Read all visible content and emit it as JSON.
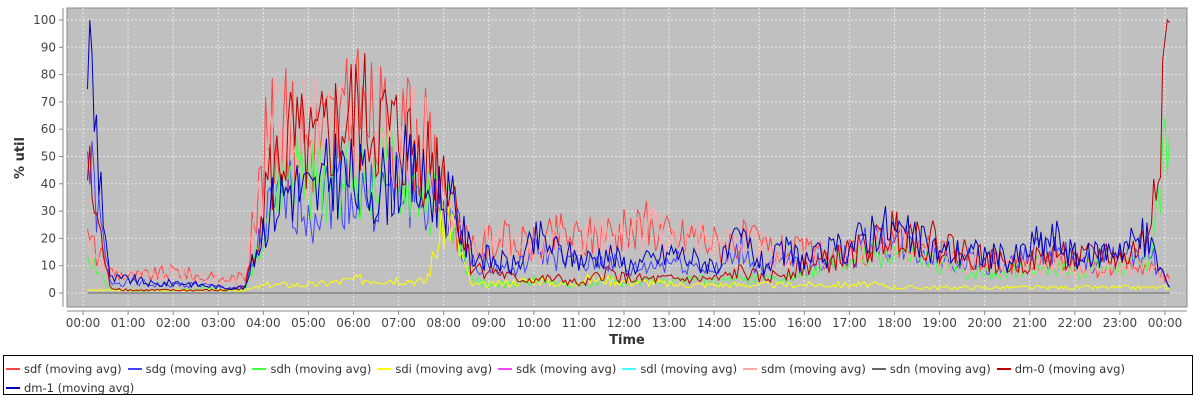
{
  "chart_data": {
    "type": "line",
    "title": "",
    "xlabel": "Time",
    "ylabel": "% util",
    "ylim": [
      -3,
      103
    ],
    "xlim_hours": [
      -0.35,
      24.5
    ],
    "grid": true,
    "legend_placement": "bottom",
    "yticks": [
      "0",
      "10",
      "20",
      "30",
      "40",
      "50",
      "60",
      "70",
      "80",
      "90",
      "100"
    ],
    "xticks": [
      "00:00",
      "01:00",
      "02:00",
      "03:00",
      "04:00",
      "05:00",
      "06:00",
      "07:00",
      "08:00",
      "09:00",
      "10:00",
      "11:00",
      "12:00",
      "13:00",
      "14:00",
      "15:00",
      "16:00",
      "17:00",
      "18:00",
      "19:00",
      "20:00",
      "21:00",
      "22:00",
      "23:00",
      "00:00"
    ],
    "x_hours_step": 0.5,
    "x_hours_start": 0.1,
    "series": [
      {
        "name": "sdf (moving avg)",
        "color": "#ff4444",
        "values": [
          20,
          8,
          6,
          7,
          8,
          6,
          5,
          6,
          58,
          60,
          58,
          62,
          65,
          62,
          58,
          55,
          30,
          15,
          20,
          18,
          18,
          22,
          20,
          23,
          22,
          25,
          20,
          22,
          18,
          20,
          17,
          15,
          15,
          12,
          15,
          18,
          20,
          16,
          14,
          12,
          12,
          11,
          10,
          12,
          10,
          8,
          12,
          10,
          5
        ]
      },
      {
        "name": "sdg (moving avg)",
        "color": "#4444ff",
        "values": [
          50,
          4,
          4,
          3,
          3,
          3,
          2,
          2,
          28,
          35,
          30,
          40,
          35,
          35,
          40,
          33,
          30,
          12,
          10,
          8,
          16,
          12,
          10,
          12,
          8,
          10,
          12,
          10,
          8,
          16,
          8,
          12,
          10,
          12,
          15,
          20,
          18,
          15,
          12,
          12,
          11,
          10,
          15,
          16,
          10,
          12,
          15,
          16,
          2
        ]
      },
      {
        "name": "sdh (moving avg)",
        "color": "#44ff44",
        "values": [
          15,
          1,
          1,
          1,
          1,
          2,
          1,
          1,
          30,
          45,
          40,
          45,
          40,
          45,
          40,
          35,
          30,
          5,
          3,
          3,
          5,
          3,
          3,
          5,
          3,
          5,
          5,
          5,
          4,
          5,
          5,
          5,
          8,
          10,
          12,
          15,
          15,
          12,
          10,
          8,
          8,
          8,
          10,
          10,
          8,
          10,
          10,
          10,
          57
        ]
      },
      {
        "name": "sdi (moving avg)",
        "color": "#ffff00",
        "values": [
          1,
          1,
          1,
          1,
          1,
          1,
          1,
          1,
          3,
          3,
          3,
          4,
          5,
          5,
          5,
          4,
          30,
          3,
          3,
          4,
          5,
          3,
          5,
          5,
          4,
          4,
          3,
          3,
          3,
          3,
          3,
          3,
          3,
          3,
          3,
          3,
          2,
          2,
          2,
          2,
          2,
          2,
          2,
          2,
          2,
          2,
          2,
          2,
          2
        ]
      },
      {
        "name": "sdk (moving avg)",
        "color": "#ff44ff",
        "values": [
          0,
          0,
          0,
          0,
          0,
          0,
          0,
          0,
          0,
          0,
          0,
          0,
          0,
          0,
          0,
          0,
          0,
          0,
          0,
          0,
          0,
          0,
          0,
          0,
          0,
          0,
          0,
          0,
          0,
          0,
          0,
          0,
          0,
          0,
          0,
          0,
          0,
          0,
          0,
          0,
          0,
          0,
          0,
          0,
          0,
          0,
          0,
          0,
          0
        ]
      },
      {
        "name": "sdl (moving avg)",
        "color": "#44ffff",
        "values": [
          0,
          0,
          0,
          0,
          0,
          0,
          0,
          0,
          0,
          0,
          0,
          0,
          0,
          0,
          0,
          0,
          0,
          0,
          0,
          0,
          0,
          0,
          0,
          0,
          0,
          0,
          0,
          0,
          0,
          0,
          0,
          0,
          0,
          0,
          0,
          0,
          0,
          0,
          0,
          0,
          0,
          0,
          0,
          0,
          0,
          0,
          0,
          0,
          0
        ]
      },
      {
        "name": "sdm (moving avg)",
        "color": "#ffaaaa",
        "values": [
          18,
          7,
          6,
          7,
          7,
          6,
          5,
          6,
          55,
          58,
          57,
          60,
          62,
          60,
          57,
          54,
          28,
          14,
          19,
          17,
          17,
          21,
          19,
          22,
          21,
          24,
          19,
          21,
          17,
          19,
          16,
          14,
          14,
          11,
          14,
          17,
          19,
          15,
          13,
          11,
          11,
          10,
          9,
          11,
          9,
          7,
          11,
          9,
          5
        ]
      },
      {
        "name": "sdn (moving avg)",
        "color": "#666666",
        "values": [
          0,
          0,
          0,
          0,
          0,
          0,
          0,
          0,
          0,
          0,
          0,
          0,
          0,
          0,
          0,
          0,
          0,
          0,
          0,
          0,
          0,
          0,
          0,
          0,
          0,
          0,
          0,
          0,
          0,
          0,
          0,
          0,
          0,
          0,
          0,
          0,
          0,
          0,
          0,
          0,
          0,
          0,
          0,
          0,
          0,
          0,
          0,
          0,
          0
        ]
      },
      {
        "name": "dm-0 (moving avg)",
        "color": "#bb0000",
        "values": [
          45,
          2,
          1,
          1,
          1,
          1,
          1,
          2,
          40,
          55,
          50,
          60,
          65,
          60,
          55,
          50,
          45,
          10,
          8,
          5,
          5,
          5,
          3,
          8,
          5,
          5,
          5,
          5,
          5,
          8,
          5,
          8,
          10,
          12,
          15,
          18,
          25,
          20,
          18,
          15,
          12,
          10,
          12,
          15,
          12,
          15,
          12,
          20,
          99
        ]
      },
      {
        "name": "dm-1 (moving avg)",
        "color": "#0000bb",
        "values": [
          95,
          5,
          5,
          3,
          4,
          3,
          2,
          2,
          30,
          40,
          35,
          45,
          40,
          40,
          45,
          38,
          35,
          15,
          12,
          10,
          20,
          15,
          12,
          15,
          10,
          12,
          15,
          12,
          10,
          20,
          10,
          15,
          12,
          15,
          18,
          25,
          22,
          18,
          15,
          15,
          14,
          12,
          18,
          20,
          12,
          15,
          18,
          20,
          2
        ]
      }
    ]
  }
}
